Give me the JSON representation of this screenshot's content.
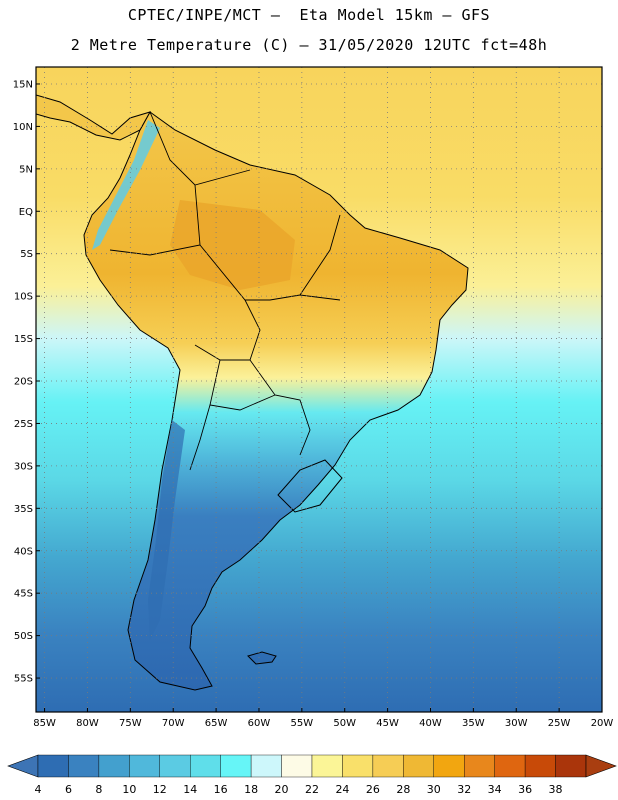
{
  "header": {
    "line1": "CPTEC/INPE/MCT –  Eta Model 15km – GFS",
    "line2": "2 Metre Temperature (C) – 31/05/2020 12UTC fct=48h"
  },
  "map": {
    "lon_range": [
      -86,
      -20
    ],
    "lat_range": [
      -59,
      17
    ],
    "lat_ticks": [
      "15N",
      "10N",
      "5N",
      "EQ",
      "5S",
      "10S",
      "15S",
      "20S",
      "25S",
      "30S",
      "35S",
      "40S",
      "45S",
      "50S",
      "55S"
    ],
    "lon_ticks": [
      "85W",
      "80W",
      "75W",
      "70W",
      "65W",
      "60W",
      "55W",
      "50W",
      "45W",
      "40W",
      "35W",
      "30W",
      "25W",
      "20W"
    ]
  },
  "colorbar": {
    "labels": [
      "4",
      "6",
      "8",
      "10",
      "12",
      "14",
      "16",
      "18",
      "20",
      "22",
      "24",
      "26",
      "28",
      "30",
      "32",
      "34",
      "36",
      "38"
    ],
    "colors": [
      "#2e6db3",
      "#3a82c0",
      "#43a0ce",
      "#50b8db",
      "#5bcbe3",
      "#5fdeea",
      "#66f5f7",
      "#cdf7fb",
      "#fdfbe6",
      "#fbf597",
      "#f9e06a",
      "#f6cd55",
      "#efb834",
      "#f2a610",
      "#e8871c",
      "#df6610",
      "#c84a08",
      "#aa350b"
    ],
    "low_color": "#3d74b5",
    "high_color": "#a93e10"
  }
}
